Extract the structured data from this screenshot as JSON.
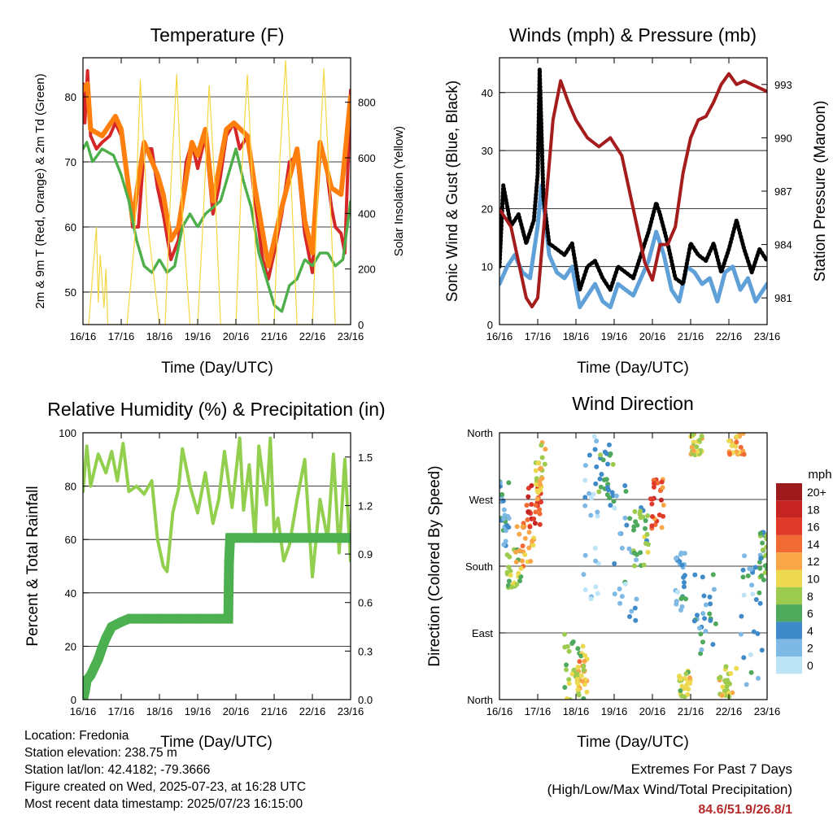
{
  "x_ticks": [
    "16/16",
    "17/16",
    "18/16",
    "19/16",
    "20/16",
    "21/16",
    "22/16",
    "23/16"
  ],
  "colors": {
    "temp_2m": "#d62728",
    "temp_9m": "#ff7f0e",
    "dewpoint": "#4daf4a",
    "insolation": "#f5d742",
    "wind": "#5fa0d8",
    "gust": "#000000",
    "pressure": "#a51c1c",
    "rh": "#93cf4f",
    "precip": "#4caf50",
    "grid": "#000000"
  },
  "chart_data": [
    {
      "id": "temperature",
      "type": "line",
      "title": "Temperature (F)",
      "xlabel": "Time (Day/UTC)",
      "ylabel": "2m & 9m T (Red, Orange) & 2m Td (Green)",
      "y2label": "Solar Insolation (Yellow)",
      "ylim": [
        45,
        86
      ],
      "y2lim": [
        0,
        960
      ],
      "yticks": [
        50,
        60,
        70,
        80
      ],
      "y2ticks": [
        0,
        200,
        400,
        600,
        800
      ],
      "grid": true,
      "series": [
        {
          "key": "temp_2m",
          "x": [
            0,
            0.05,
            0.12,
            0.2,
            0.35,
            0.5,
            0.7,
            0.85,
            1.0,
            1.15,
            1.3,
            1.45,
            1.6,
            1.8,
            1.95,
            2.1,
            2.3,
            2.5,
            2.7,
            2.85,
            3.0,
            3.2,
            3.4,
            3.55,
            3.75,
            3.95,
            4.1,
            4.3,
            4.5,
            4.7,
            4.85,
            5.0,
            5.2,
            5.4,
            5.6,
            5.8,
            6.0,
            6.2,
            6.35,
            6.5,
            6.6,
            6.75,
            6.85,
            7.0
          ],
          "y": [
            82,
            76,
            84,
            74,
            72,
            73,
            74,
            76,
            74,
            68,
            60,
            60,
            72,
            72,
            66,
            62,
            55,
            58,
            70,
            73,
            69,
            74,
            62,
            66,
            74,
            76,
            72,
            74,
            64,
            55,
            52,
            56,
            62,
            70,
            71,
            59,
            53,
            73,
            70,
            63,
            60,
            59,
            56,
            81
          ]
        },
        {
          "key": "temp_9m",
          "x": [
            0,
            0.12,
            0.2,
            0.5,
            0.85,
            1.0,
            1.3,
            1.6,
            1.95,
            2.1,
            2.3,
            2.5,
            2.85,
            3.0,
            3.2,
            3.4,
            3.75,
            3.95,
            4.3,
            4.5,
            4.85,
            5.2,
            5.6,
            5.8,
            6.0,
            6.2,
            6.5,
            6.75,
            7.0
          ],
          "y": [
            81,
            82,
            75,
            74,
            77,
            75,
            61,
            73,
            68,
            65,
            58,
            60,
            73,
            71,
            75,
            64,
            75,
            76,
            74,
            66,
            54,
            63,
            72,
            61,
            56,
            73,
            66,
            65,
            80
          ]
        },
        {
          "key": "dewpoint",
          "x": [
            0,
            0.1,
            0.25,
            0.5,
            0.8,
            1.0,
            1.2,
            1.4,
            1.6,
            1.8,
            2.0,
            2.2,
            2.4,
            2.6,
            2.8,
            3.0,
            3.2,
            3.4,
            3.6,
            3.8,
            4.0,
            4.2,
            4.4,
            4.6,
            4.8,
            5.0,
            5.2,
            5.4,
            5.6,
            5.8,
            6.0,
            6.2,
            6.4,
            6.6,
            6.8,
            7.0
          ],
          "y": [
            72,
            73,
            70,
            72,
            71,
            68,
            64,
            58,
            54,
            53,
            55,
            53,
            54,
            60,
            62,
            60,
            62,
            63,
            64,
            68,
            72,
            67,
            63,
            56,
            52,
            48,
            47,
            51,
            52,
            55,
            54,
            56,
            56,
            54,
            55,
            64
          ]
        },
        {
          "key": "insolation",
          "x": [
            0,
            0.15,
            0.35,
            0.4,
            0.45,
            0.55,
            0.6,
            0.65,
            1.0,
            1.15,
            1.35,
            1.5,
            1.7,
            2.0,
            2.15,
            2.3,
            2.45,
            2.6,
            2.8,
            3.0,
            3.15,
            3.3,
            3.45,
            3.6,
            3.8,
            4.0,
            4.15,
            4.3,
            4.45,
            4.6,
            4.8,
            5.0,
            5.15,
            5.3,
            5.45,
            5.6,
            5.8,
            6.0,
            6.15,
            6.3,
            6.45,
            6.6,
            6.8,
            7.0
          ],
          "y": [
            0,
            0,
            350,
            80,
            250,
            60,
            200,
            0,
            0,
            0,
            300,
            880,
            350,
            0,
            0,
            500,
            900,
            400,
            0,
            0,
            400,
            860,
            500,
            0,
            0,
            0,
            550,
            900,
            450,
            0,
            0,
            0,
            600,
            950,
            500,
            0,
            0,
            0,
            500,
            920,
            500,
            0,
            0,
            0
          ]
        }
      ]
    },
    {
      "id": "winds",
      "type": "line",
      "title": "Winds (mph) & Pressure (mb)",
      "xlabel": "Time (Day/UTC)",
      "ylabel": "Sonic Wind & Gust (Blue, Black)",
      "y2label": "Station Pressure (Maroon)",
      "ylim": [
        0,
        46
      ],
      "y2lim": [
        979.5,
        994.5
      ],
      "yticks": [
        0,
        10,
        20,
        30,
        40
      ],
      "y2ticks": [
        981,
        984,
        987,
        990,
        993
      ],
      "grid": true,
      "series": [
        {
          "key": "wind",
          "x": [
            0,
            0.2,
            0.4,
            0.6,
            0.8,
            1.0,
            1.1,
            1.3,
            1.5,
            1.7,
            1.9,
            2.1,
            2.3,
            2.5,
            2.7,
            2.9,
            3.1,
            3.3,
            3.5,
            3.7,
            3.9,
            4.1,
            4.3,
            4.5,
            4.7,
            4.9,
            5.1,
            5.3,
            5.5,
            5.7,
            5.9,
            6.1,
            6.3,
            6.5,
            6.7,
            7.0
          ],
          "y": [
            7,
            10,
            12,
            9,
            8,
            17,
            24,
            12,
            9,
            8,
            10,
            3,
            5,
            7,
            4,
            3,
            7,
            6,
            5,
            8,
            11,
            16,
            12,
            6,
            4,
            10,
            9,
            7,
            8,
            4,
            9,
            10,
            6,
            8,
            4,
            7
          ]
        },
        {
          "key": "gust",
          "x": [
            0,
            0.1,
            0.3,
            0.5,
            0.7,
            0.9,
            1.0,
            1.05,
            1.15,
            1.3,
            1.5,
            1.7,
            1.9,
            2.1,
            2.3,
            2.5,
            2.7,
            2.9,
            3.1,
            3.3,
            3.5,
            3.7,
            3.9,
            4.1,
            4.2,
            4.4,
            4.6,
            4.8,
            5.0,
            5.2,
            5.4,
            5.6,
            5.8,
            6.0,
            6.2,
            6.4,
            6.6,
            6.8,
            7.0
          ],
          "y": [
            10,
            24,
            17,
            19,
            14,
            18,
            26,
            44,
            22,
            14,
            13,
            12,
            14,
            6,
            10,
            11,
            8,
            6,
            10,
            9,
            8,
            12,
            16,
            21,
            19,
            14,
            8,
            7,
            14,
            12,
            11,
            14,
            9,
            13,
            18,
            13,
            9,
            13,
            11
          ]
        },
        {
          "key": "pressure",
          "x": [
            0,
            0.3,
            0.5,
            0.7,
            0.85,
            1.0,
            1.2,
            1.4,
            1.6,
            1.8,
            2.0,
            2.3,
            2.6,
            2.9,
            3.2,
            3.4,
            3.6,
            3.8,
            4.0,
            4.2,
            4.4,
            4.6,
            4.8,
            5.0,
            5.2,
            5.4,
            5.6,
            5.8,
            6.0,
            6.2,
            6.4,
            6.6,
            6.8,
            7.0
          ],
          "y": [
            986,
            985,
            983,
            981,
            980.5,
            981,
            986,
            991,
            993.2,
            992,
            991,
            990,
            989.5,
            990,
            989,
            987,
            985,
            983,
            982,
            984,
            984,
            985,
            988,
            990,
            991,
            991.2,
            992,
            993,
            993.6,
            993,
            993.2,
            993,
            992.8,
            992.6
          ]
        }
      ]
    },
    {
      "id": "humidity",
      "type": "line",
      "title": "Relative Humidity (%) & Precipitation (in)",
      "xlabel": "Time (Day/UTC)",
      "ylabel": "Percent & Total Rainfall",
      "ylim": [
        0,
        100
      ],
      "y2lim": [
        0,
        1.65
      ],
      "yticks": [
        0,
        20,
        40,
        60,
        80,
        100
      ],
      "y2ticks": [
        0.0,
        0.3,
        0.6,
        0.9,
        1.2,
        1.5
      ],
      "grid": true,
      "series": [
        {
          "key": "rh",
          "x": [
            0,
            0.1,
            0.2,
            0.4,
            0.6,
            0.75,
            0.9,
            1.05,
            1.2,
            1.4,
            1.6,
            1.8,
            1.95,
            2.1,
            2.2,
            2.35,
            2.5,
            2.6,
            2.8,
            3.0,
            3.2,
            3.4,
            3.55,
            3.7,
            3.9,
            4.1,
            4.2,
            4.35,
            4.5,
            4.6,
            4.8,
            4.9,
            5.0,
            5.1,
            5.25,
            5.4,
            5.6,
            5.8,
            6.0,
            6.2,
            6.4,
            6.55,
            6.7,
            6.85,
            7.0
          ],
          "y": [
            78,
            95,
            80,
            92,
            85,
            93,
            82,
            96,
            78,
            80,
            77,
            82,
            60,
            50,
            48,
            70,
            79,
            94,
            80,
            70,
            85,
            66,
            75,
            93,
            72,
            98,
            71,
            88,
            60,
            95,
            73,
            98,
            63,
            68,
            52,
            58,
            75,
            90,
            46,
            75,
            60,
            92,
            55,
            90,
            52
          ]
        },
        {
          "key": "precip",
          "x": [
            0,
            0.05,
            0.1,
            0.2,
            0.3,
            0.4,
            0.5,
            0.6,
            0.75,
            1.0,
            1.2,
            1.4,
            1.6,
            2.0,
            2.5,
            3.0,
            3.5,
            3.8,
            3.82,
            3.85,
            4.0,
            4.5,
            5.0,
            5.5,
            6.0,
            6.5,
            7.0
          ],
          "y": [
            0.0,
            0.05,
            0.12,
            0.15,
            0.2,
            0.25,
            0.32,
            0.38,
            0.45,
            0.48,
            0.5,
            0.5,
            0.5,
            0.5,
            0.5,
            0.5,
            0.5,
            0.5,
            0.85,
            1.0,
            1.0,
            1.0,
            1.0,
            1.0,
            1.0,
            1.0,
            1.0
          ]
        }
      ]
    },
    {
      "id": "wind_direction",
      "type": "scatter",
      "title": "Wind Direction",
      "xlabel": "Time (Day/UTC)",
      "ylabel": "Direction (Colored By Speed)",
      "ylim": [
        0,
        360
      ],
      "yticks": [
        0,
        90,
        180,
        270,
        360
      ],
      "ytick_labels": [
        "North",
        "East",
        "South",
        "West",
        "North"
      ],
      "grid": true,
      "legend_title": "mph",
      "legend": [
        {
          "label": "20+",
          "color": "#9e1b1b"
        },
        {
          "label": "18",
          "color": "#c62323"
        },
        {
          "label": "16",
          "color": "#e03b2a"
        },
        {
          "label": "14",
          "color": "#f26b35"
        },
        {
          "label": "12",
          "color": "#f9a648"
        },
        {
          "label": "10",
          "color": "#ecd94f"
        },
        {
          "label": "8",
          "color": "#9ccb50"
        },
        {
          "label": "6",
          "color": "#4fa95d"
        },
        {
          "label": "4",
          "color": "#3f8bc9"
        },
        {
          "label": "2",
          "color": "#7eb8e5"
        },
        {
          "label": "0",
          "color": "#bde3f6"
        }
      ],
      "clusters": [
        {
          "x": [
            0.0,
            0.25
          ],
          "y": [
            200,
            300
          ],
          "speed": 4
        },
        {
          "x": [
            0.2,
            0.6
          ],
          "y": [
            150,
            210
          ],
          "speed": 8
        },
        {
          "x": [
            0.4,
            0.9
          ],
          "y": [
            175,
            240
          ],
          "speed": 12
        },
        {
          "x": [
            0.7,
            1.1
          ],
          "y": [
            230,
            290
          ],
          "speed": 16
        },
        {
          "x": [
            0.95,
            1.2
          ],
          "y": [
            270,
            350
          ],
          "speed": 10
        },
        {
          "x": [
            1.7,
            2.2
          ],
          "y": [
            0,
            90
          ],
          "speed": 8
        },
        {
          "x": [
            2.0,
            2.3
          ],
          "y": [
            10,
            60
          ],
          "speed": 11
        },
        {
          "x": [
            2.2,
            2.6
          ],
          "y": [
            120,
            360
          ],
          "speed": 2
        },
        {
          "x": [
            2.6,
            3.0
          ],
          "y": [
            260,
            350
          ],
          "speed": 5
        },
        {
          "x": [
            3.0,
            3.6
          ],
          "y": [
            100,
            300
          ],
          "speed": 3
        },
        {
          "x": [
            3.5,
            3.9
          ],
          "y": [
            180,
            260
          ],
          "speed": 7
        },
        {
          "x": [
            3.95,
            4.3
          ],
          "y": [
            230,
            300
          ],
          "speed": 15
        },
        {
          "x": [
            4.6,
            4.9
          ],
          "y": [
            120,
            200
          ],
          "speed": 3
        },
        {
          "x": [
            4.7,
            5.0
          ],
          "y": [
            0,
            40
          ],
          "speed": 9
        },
        {
          "x": [
            5.0,
            5.3
          ],
          "y": [
            330,
            360
          ],
          "speed": 10
        },
        {
          "x": [
            5.1,
            5.7
          ],
          "y": [
            60,
            170
          ],
          "speed": 4
        },
        {
          "x": [
            5.7,
            6.2
          ],
          "y": [
            0,
            45
          ],
          "speed": 9
        },
        {
          "x": [
            6.0,
            6.4
          ],
          "y": [
            330,
            360
          ],
          "speed": 12
        },
        {
          "x": [
            6.3,
            6.9
          ],
          "y": [
            20,
            220
          ],
          "speed": 3
        },
        {
          "x": [
            6.8,
            7.0
          ],
          "y": [
            160,
            230
          ],
          "speed": 6
        }
      ]
    }
  ],
  "info": {
    "location": "Location: Fredonia",
    "elevation": "Station elevation: 238.75 m",
    "latlon": "Station lat/lon: 42.4182; -79.3666",
    "created": "Figure created on Wed, 2025-07-23, at 16:28 UTC",
    "recent": "Most recent data timestamp: 2025/07/23 16:15:00"
  },
  "extremes": {
    "title": "Extremes For Past 7 Days",
    "subtitle": "(High/Low/Max Wind/Total Precipitation)",
    "values": "84.6/51.9/26.8/1"
  }
}
